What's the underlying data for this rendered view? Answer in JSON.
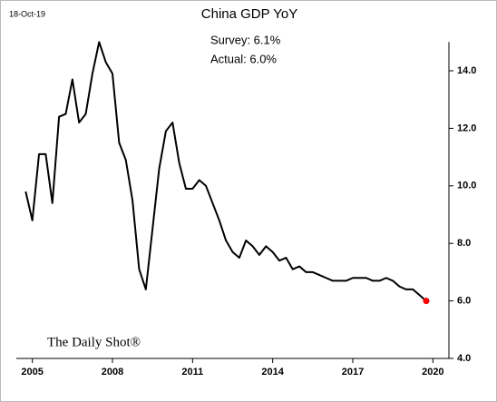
{
  "chart_data": {
    "type": "line",
    "title": "China GDP YoY",
    "date": "18-Oct-19",
    "annotations": [
      "Survey: 6.1%",
      "Actual:  6.0%"
    ],
    "watermark": "The Daily Shot®",
    "x": [
      2004.75,
      2005,
      2005.25,
      2005.5,
      2005.75,
      2006,
      2006.25,
      2006.5,
      2006.75,
      2007,
      2007.25,
      2007.5,
      2007.75,
      2008,
      2008.25,
      2008.5,
      2008.75,
      2009,
      2009.25,
      2009.5,
      2009.75,
      2010,
      2010.25,
      2010.5,
      2010.75,
      2011,
      2011.25,
      2011.5,
      2011.75,
      2012,
      2012.25,
      2012.5,
      2012.75,
      2013,
      2013.25,
      2013.5,
      2013.75,
      2014,
      2014.25,
      2014.5,
      2014.75,
      2015,
      2015.25,
      2015.5,
      2015.75,
      2016,
      2016.25,
      2016.5,
      2016.75,
      2017,
      2017.25,
      2017.5,
      2017.75,
      2018,
      2018.25,
      2018.5,
      2018.75,
      2019,
      2019.25,
      2019.5,
      2019.75
    ],
    "series": [
      {
        "color": "#000000",
        "last_point_color": "#ff0000",
        "values": [
          9.8,
          8.8,
          11.1,
          11.1,
          9.4,
          12.4,
          12.5,
          13.7,
          12.2,
          12.5,
          13.9,
          15.0,
          14.3,
          13.9,
          11.5,
          10.9,
          9.5,
          7.1,
          6.4,
          8.5,
          10.6,
          11.9,
          12.2,
          10.8,
          9.9,
          9.9,
          10.2,
          10.0,
          9.4,
          8.8,
          8.1,
          7.7,
          7.5,
          8.1,
          7.9,
          7.6,
          7.9,
          7.7,
          7.4,
          7.5,
          7.1,
          7.2,
          7.0,
          7.0,
          6.9,
          6.8,
          6.7,
          6.7,
          6.7,
          6.8,
          6.8,
          6.8,
          6.7,
          6.7,
          6.8,
          6.7,
          6.5,
          6.4,
          6.4,
          6.2,
          6.0
        ]
      }
    ],
    "xlim": [
      2004.4,
      2020.6
    ],
    "xticks": [
      2005,
      2008,
      2011,
      2014,
      2017,
      2020
    ],
    "ylim": [
      4,
      15
    ],
    "yticks": [
      {
        "value": 4,
        "label": "4.0"
      },
      {
        "value": 6,
        "label": "6.0"
      },
      {
        "value": 8,
        "label": "8.0"
      },
      {
        "value": 10,
        "label": "10.0"
      },
      {
        "value": 12,
        "label": "12.0"
      },
      {
        "value": 14,
        "label": "14.0"
      }
    ]
  }
}
